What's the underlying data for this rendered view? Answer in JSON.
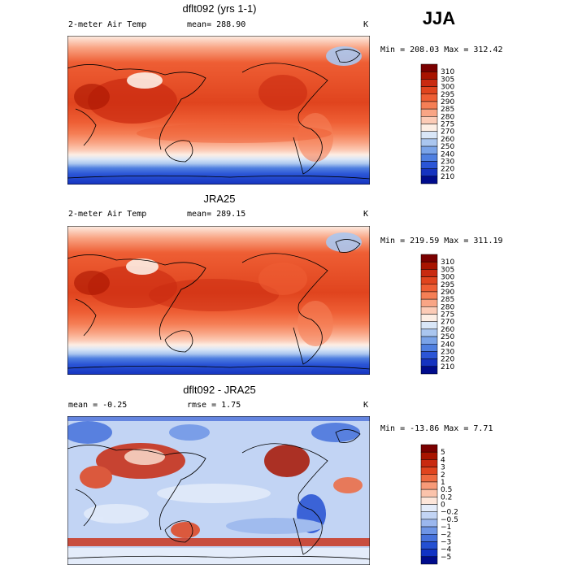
{
  "season": "JJA",
  "panels": [
    {
      "title": "dflt092 (yrs 1-1)",
      "left_label": "2-meter Air Temp",
      "center_label": "mean=  288.90",
      "unit": "K",
      "minmax": "Min = 208.03 Max = 312.42",
      "colorbar": {
        "labels": [
          "310",
          "305",
          "300",
          "295",
          "290",
          "285",
          "280",
          "275",
          "270",
          "260",
          "250",
          "240",
          "230",
          "220",
          "210"
        ],
        "colors": [
          "#7a0000",
          "#a81400",
          "#c92a10",
          "#e0441e",
          "#ee5e34",
          "#f57f56",
          "#f9a585",
          "#fccbb6",
          "#fdeee4",
          "#d9e6f7",
          "#aac6ef",
          "#7aa3e8",
          "#4f7fe0",
          "#2b55d6",
          "#1533c0",
          "#000c8c"
        ]
      }
    },
    {
      "title": "JRA25",
      "left_label": "2-meter Air Temp",
      "center_label": "mean=  289.15",
      "unit": "K",
      "minmax": "Min = 219.59 Max = 311.19",
      "colorbar": {
        "labels": [
          "310",
          "305",
          "300",
          "295",
          "290",
          "285",
          "280",
          "275",
          "270",
          "260",
          "250",
          "240",
          "230",
          "220",
          "210"
        ],
        "colors": [
          "#7a0000",
          "#a81400",
          "#c92a10",
          "#e0441e",
          "#ee5e34",
          "#f57f56",
          "#f9a585",
          "#fccbb6",
          "#fdeee4",
          "#d9e6f7",
          "#aac6ef",
          "#7aa3e8",
          "#4f7fe0",
          "#2b55d6",
          "#1533c0",
          "#000c8c"
        ]
      }
    },
    {
      "title": "dflt092 - JRA25",
      "left_label": "mean =   -0.25",
      "center_label": "rmse =    1.75",
      "unit": "K",
      "minmax": "Min = -13.86 Max =   7.71",
      "colorbar": {
        "labels": [
          "5",
          "4",
          "3",
          "2",
          "1",
          "0.5",
          "0.2",
          "0",
          "−0.2",
          "−0.5",
          "−1",
          "−2",
          "−3",
          "−4",
          "−5"
        ],
        "colors": [
          "#7a0000",
          "#a81400",
          "#c92a10",
          "#e0441e",
          "#ee6a40",
          "#f79a78",
          "#fbc3ab",
          "#fde6da",
          "#e4ecfa",
          "#c2d4f4",
          "#9bb7ee",
          "#6e95e6",
          "#4672dc",
          "#2450d2",
          "#1133c4",
          "#000c8c"
        ]
      }
    }
  ]
}
